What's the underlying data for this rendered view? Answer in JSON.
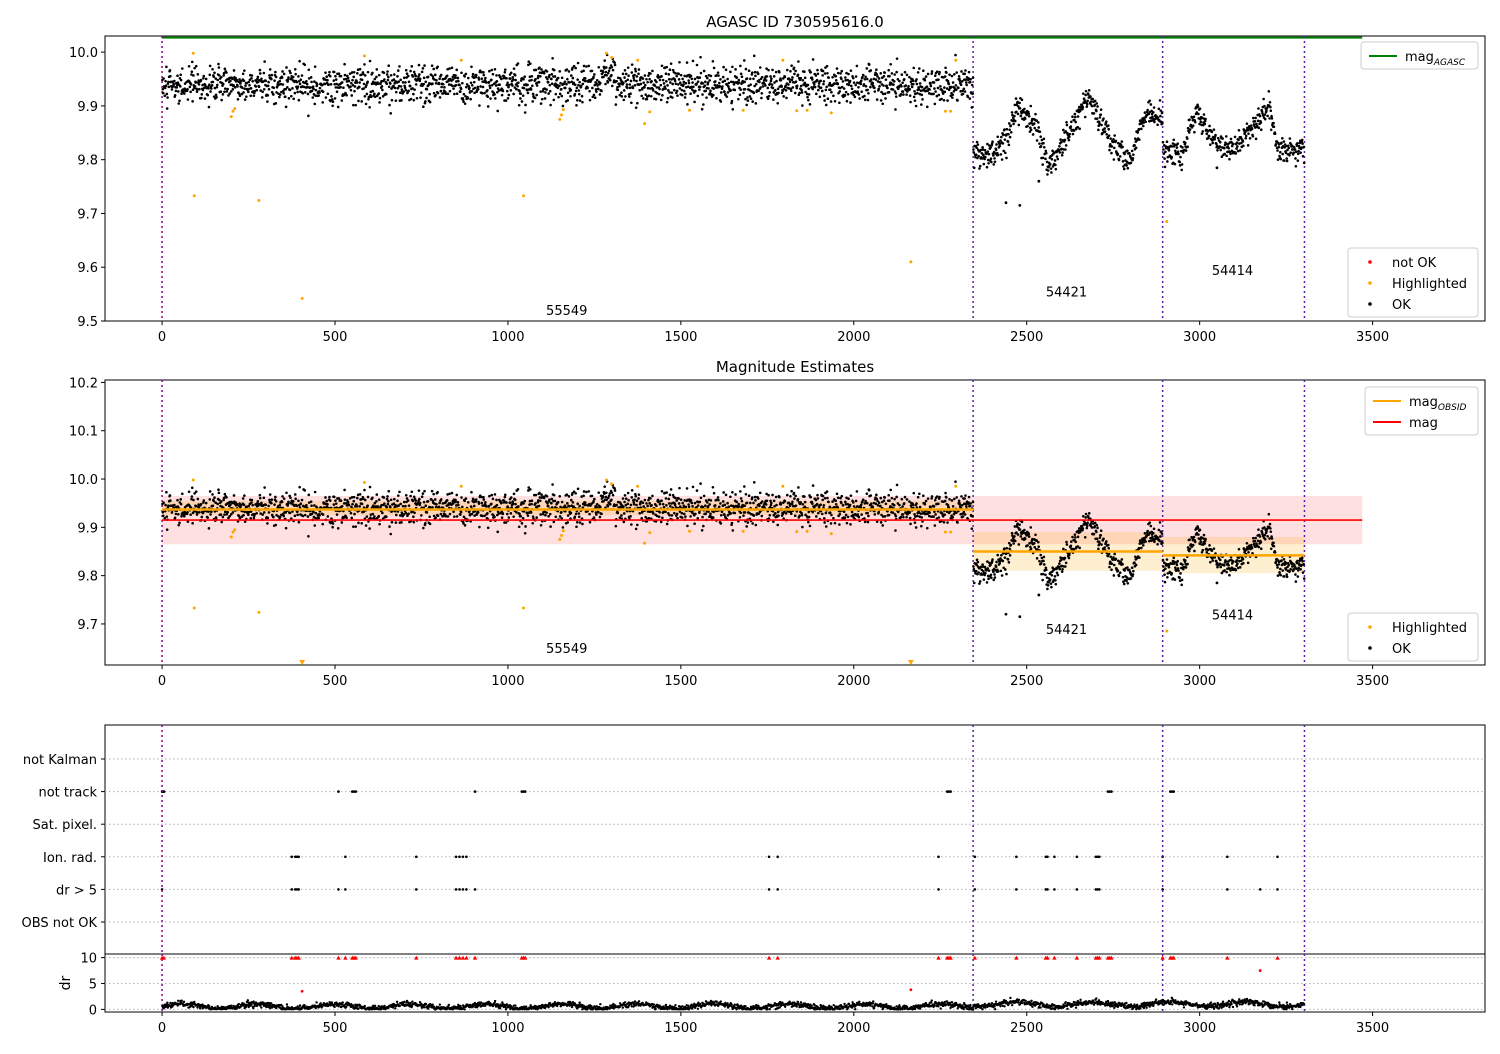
{
  "chart_data": [
    {
      "type": "scatter",
      "title": "AGASC ID 730595616.0",
      "xlim": [
        -165,
        3825
      ],
      "ylim": [
        9.5,
        10.03
      ],
      "x_ticks": [
        0,
        500,
        1000,
        1500,
        2000,
        2500,
        3000,
        3500
      ],
      "y_ticks": [
        9.5,
        9.6,
        9.7,
        9.8,
        9.9,
        10.0
      ],
      "y_tick_labels": [
        "9.5",
        "9.6",
        "9.7",
        "9.8",
        "9.9",
        "10.0"
      ],
      "x_tick_labels": [
        "0",
        "500",
        "1000",
        "1500",
        "2000",
        "2500",
        "3000",
        "3500"
      ],
      "obsid_boundaries": [
        0,
        2345,
        2893,
        3303
      ],
      "obsid_labels": [
        {
          "text": "55549",
          "x": 1170,
          "y": 9.52
        },
        {
          "text": "54421",
          "x": 2615,
          "y": 9.555
        },
        {
          "text": "54414",
          "x": 3095,
          "y": 9.595
        }
      ],
      "lines": [
        {
          "name": "mag_AGASC",
          "value": 10.027,
          "x": [
            0,
            3470
          ],
          "color": "#008000"
        }
      ],
      "segments": [
        {
          "x": [
            0,
            2345
          ],
          "level": 9.94,
          "amp": 0.017,
          "waves": [],
          "extra": [
            {
              "x": [
                1270,
                1310
              ],
              "shift": 0.02
            }
          ]
        },
        {
          "x": [
            2345,
            2893
          ],
          "level": 9.845,
          "amp": 0.013,
          "waves": [
            {
              "x": 2380,
              "y": 9.81
            },
            {
              "x": 2420,
              "y": 9.82
            },
            {
              "x": 2440,
              "y": 9.84
            },
            {
              "x": 2470,
              "y": 9.9
            },
            {
              "x": 2500,
              "y": 9.88
            },
            {
              "x": 2530,
              "y": 9.86
            },
            {
              "x": 2560,
              "y": 9.79
            },
            {
              "x": 2600,
              "y": 9.82
            },
            {
              "x": 2640,
              "y": 9.87
            },
            {
              "x": 2680,
              "y": 9.92
            },
            {
              "x": 2720,
              "y": 9.86
            },
            {
              "x": 2760,
              "y": 9.82
            },
            {
              "x": 2800,
              "y": 9.8
            },
            {
              "x": 2820,
              "y": 9.85
            },
            {
              "x": 2850,
              "y": 9.89
            },
            {
              "x": 2893,
              "y": 9.88
            }
          ]
        },
        {
          "x": [
            2893,
            3303
          ],
          "level": 9.84,
          "amp": 0.012,
          "waves": [
            {
              "x": 2893,
              "y": 9.82
            },
            {
              "x": 2950,
              "y": 9.81
            },
            {
              "x": 2990,
              "y": 9.89
            },
            {
              "x": 3020,
              "y": 9.86
            },
            {
              "x": 3050,
              "y": 9.83
            },
            {
              "x": 3100,
              "y": 9.82
            },
            {
              "x": 3150,
              "y": 9.86
            },
            {
              "x": 3200,
              "y": 9.9
            },
            {
              "x": 3230,
              "y": 9.81
            },
            {
              "x": 3303,
              "y": 9.82
            }
          ]
        }
      ],
      "outliers_ok": [
        {
          "x": 2440,
          "y": 9.72
        },
        {
          "x": 2480,
          "y": 9.715
        },
        {
          "x": 2535,
          "y": 9.76
        },
        {
          "x": 3050,
          "y": 9.785
        }
      ],
      "highlighted": [
        {
          "x": 90,
          "y": 9.998
        },
        {
          "x": 93,
          "y": 9.733
        },
        {
          "x": 200,
          "y": 9.88
        },
        {
          "x": 205,
          "y": 9.89
        },
        {
          "x": 210,
          "y": 9.895
        },
        {
          "x": 280,
          "y": 9.724
        },
        {
          "x": 405,
          "y": 9.542
        },
        {
          "x": 585,
          "y": 9.993
        },
        {
          "x": 865,
          "y": 9.985
        },
        {
          "x": 1045,
          "y": 9.733
        },
        {
          "x": 1150,
          "y": 9.875
        },
        {
          "x": 1155,
          "y": 9.883
        },
        {
          "x": 1160,
          "y": 9.893
        },
        {
          "x": 1285,
          "y": 9.998
        },
        {
          "x": 1300,
          "y": 9.99
        },
        {
          "x": 1375,
          "y": 9.985
        },
        {
          "x": 1395,
          "y": 9.867
        },
        {
          "x": 1410,
          "y": 9.889
        },
        {
          "x": 1525,
          "y": 9.892
        },
        {
          "x": 1680,
          "y": 9.892
        },
        {
          "x": 1795,
          "y": 9.985
        },
        {
          "x": 1835,
          "y": 9.891
        },
        {
          "x": 1865,
          "y": 9.892
        },
        {
          "x": 1935,
          "y": 9.887
        },
        {
          "x": 2165,
          "y": 9.61
        },
        {
          "x": 2265,
          "y": 9.89
        },
        {
          "x": 2280,
          "y": 9.89
        },
        {
          "x": 2295,
          "y": 9.985
        },
        {
          "x": 2905,
          "y": 9.685
        }
      ],
      "legend_upper": [
        {
          "label": "mag",
          "sub": "AGASC",
          "color": "#008000"
        }
      ],
      "legend_lower": [
        {
          "label": "not OK",
          "color": "#ff0000"
        },
        {
          "label": "Highlighted",
          "color": "#ffa500"
        },
        {
          "label": "OK",
          "color": "#000000"
        }
      ],
      "legend_placement": "top-right and bottom-right"
    },
    {
      "type": "scatter",
      "title": "Magnitude Estimates",
      "xlim": [
        -165,
        3825
      ],
      "ylim": [
        9.615,
        10.205
      ],
      "x_ticks": [
        0,
        500,
        1000,
        1500,
        2000,
        2500,
        3000,
        3500
      ],
      "x_tick_labels": [
        "0",
        "500",
        "1000",
        "1500",
        "2000",
        "2500",
        "3000",
        "3500"
      ],
      "y_ticks": [
        9.7,
        9.8,
        9.9,
        10.0,
        10.1,
        10.2
      ],
      "y_tick_labels": [
        "9.7",
        "9.8",
        "9.9",
        "10.0",
        "10.1",
        "10.2"
      ],
      "obsid_labels": [
        {
          "text": "55549",
          "x": 1170,
          "y": 9.65
        },
        {
          "text": "54421",
          "x": 2615,
          "y": 9.69
        },
        {
          "text": "54414",
          "x": 3095,
          "y": 9.72
        }
      ],
      "mag_obsid": [
        {
          "x": [
            0,
            2345
          ],
          "value": 9.937,
          "band": [
            9.925,
            9.955
          ]
        },
        {
          "x": [
            2345,
            2893
          ],
          "value": 9.85,
          "band": [
            9.81,
            9.89
          ]
        },
        {
          "x": [
            2893,
            3303
          ],
          "value": 9.842,
          "band": [
            9.805,
            9.88
          ]
        }
      ],
      "mag": {
        "x": [
          0,
          3470
        ],
        "value": 9.915,
        "band": [
          9.865,
          9.965
        ]
      },
      "below_range_markers": [
        {
          "x": 405
        },
        {
          "x": 2165
        }
      ],
      "legend_upper": [
        {
          "label": "mag",
          "sub": "OBSID",
          "color": "#ffa500"
        },
        {
          "label": "mag",
          "sub": "",
          "color": "#ff0000"
        }
      ],
      "legend_lower": [
        {
          "label": "Highlighted",
          "color": "#ffa500"
        },
        {
          "label": "OK",
          "color": "#000000"
        }
      ]
    },
    {
      "type": "scatter",
      "title": "",
      "flag_rows": [
        "not Kalman",
        "not track",
        "Sat. pixel.",
        "Ion. rad.",
        "dr > 5",
        "OBS not OK"
      ],
      "flag_points": {
        "not track": [
          0,
          3,
          6,
          510,
          550,
          555,
          560,
          905,
          1040,
          1045,
          1050,
          2270,
          2275,
          2280,
          2735,
          2740,
          2745,
          2915,
          2920,
          2925
        ],
        "Ion. rad.": [
          375,
          385,
          390,
          395,
          530,
          735,
          850,
          860,
          870,
          880,
          1755,
          1780,
          2245,
          2350,
          2470,
          2555,
          2560,
          2580,
          2645,
          2700,
          2705,
          2710,
          2893,
          3080,
          3225
        ],
        "dr > 5": [
          0,
          375,
          385,
          390,
          395,
          510,
          530,
          735,
          850,
          860,
          870,
          880,
          905,
          1755,
          1780,
          2245,
          2350,
          2470,
          2555,
          2560,
          2580,
          2645,
          2700,
          2705,
          2710,
          2893,
          3080,
          3175,
          3225
        ]
      },
      "dr_ylim": [
        -0.5,
        10.7
      ],
      "dr_y_ticks": [
        0,
        5,
        10
      ],
      "dr_y_tick_labels": [
        "0",
        "5",
        "10"
      ],
      "x_ticks": [
        0,
        500,
        1000,
        1500,
        2000,
        2500,
        3000,
        3500
      ],
      "x_tick_labels": [
        "0",
        "500",
        "1000",
        "1500",
        "2000",
        "2500",
        "3000",
        "3500"
      ],
      "ylabel": "dr",
      "dr_high_x": [
        0,
        5,
        375,
        385,
        390,
        395,
        510,
        530,
        550,
        555,
        560,
        735,
        850,
        860,
        870,
        880,
        905,
        1040,
        1045,
        1050,
        1755,
        1780,
        2245,
        2270,
        2275,
        2280,
        2350,
        2470,
        2555,
        2560,
        2580,
        2645,
        2700,
        2705,
        2710,
        2735,
        2740,
        2745,
        2893,
        2915,
        2920,
        2925,
        3080,
        3225
      ],
      "dr_mid": [
        {
          "x": 405,
          "y": 3.5
        },
        {
          "x": 2165,
          "y": 3.8
        },
        {
          "x": 3175,
          "y": 7.5
        }
      ]
    }
  ]
}
